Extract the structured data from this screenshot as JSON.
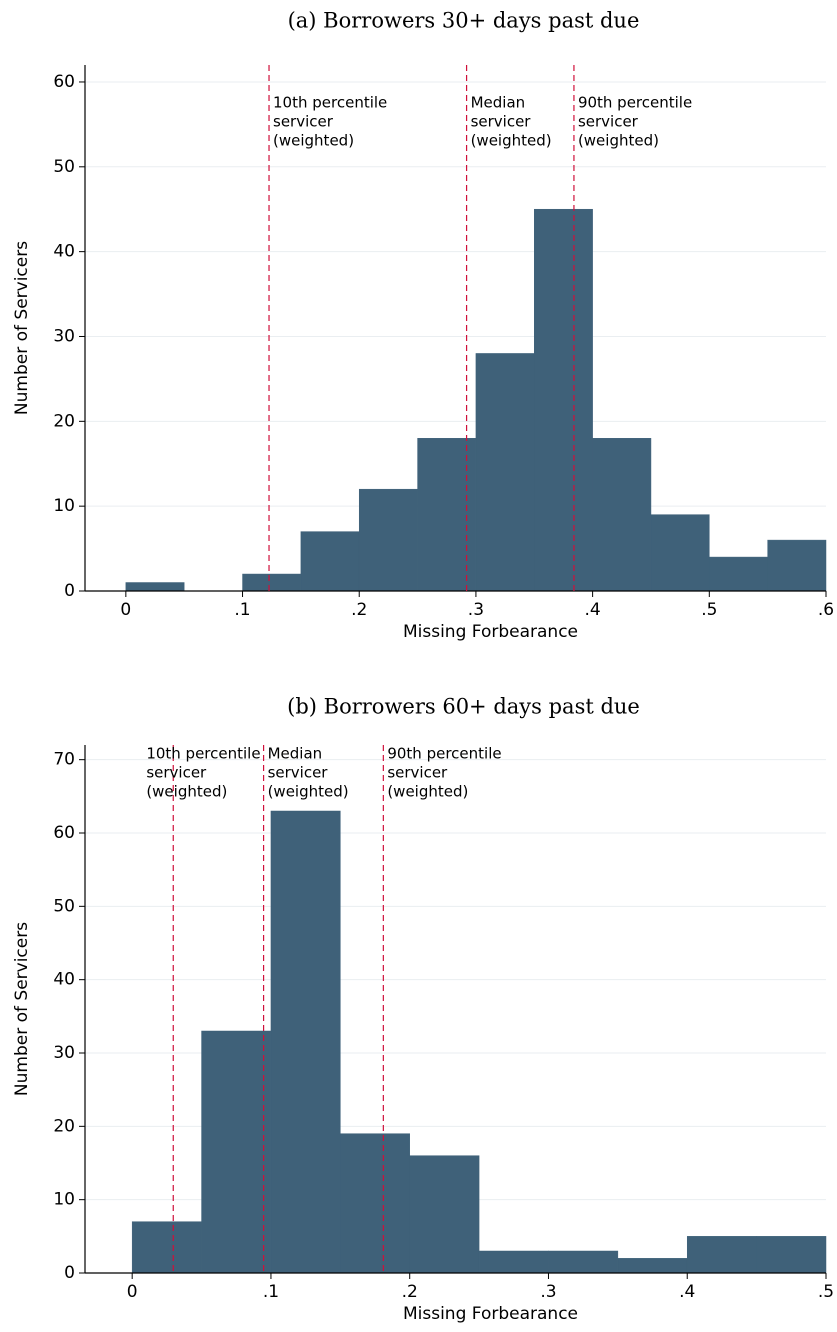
{
  "chart_data": [
    {
      "type": "histogram",
      "title": "(a) Borrowers 30+ days past due",
      "xlabel": "Missing Forbearance",
      "ylabel": "Number of Servicers",
      "bins": [
        0,
        0.05,
        0.1,
        0.15,
        0.2,
        0.25,
        0.3,
        0.35,
        0.4,
        0.45,
        0.5,
        0.55,
        0.6
      ],
      "values": [
        1,
        0,
        2,
        7,
        12,
        18,
        28,
        45,
        18,
        9,
        4,
        6
      ],
      "color": "#3f6179",
      "xlim": [
        -0.035,
        0.6
      ],
      "ylim": [
        0,
        62
      ],
      "xticks": [
        0,
        {
          "value": 0.1,
          "label": ".1"
        },
        {
          "value": 0.2,
          "label": ".2"
        },
        {
          "value": 0.3,
          "label": ".3"
        },
        {
          "value": 0.4,
          "label": ".4"
        },
        {
          "value": 0.5,
          "label": ".5"
        },
        {
          "value": 0.6,
          "label": ".6"
        }
      ],
      "yticks": [
        0,
        10,
        20,
        30,
        40,
        50,
        60
      ],
      "grid": true,
      "vlines": [
        {
          "x": 0.1227,
          "label": [
            "10th percentile",
            "servicer",
            "(weighted)"
          ]
        },
        {
          "x": 0.292,
          "label": [
            "Median",
            "servicer",
            "(weighted)"
          ]
        },
        {
          "x": 0.384,
          "label": [
            "90th percentile",
            "servicer",
            "(weighted)"
          ]
        }
      ],
      "vline_color": "#d0103a"
    },
    {
      "type": "histogram",
      "title": "(b) Borrowers 60+ days past due",
      "xlabel": "Missing Forbearance",
      "ylabel": "Number of Servicers",
      "bins": [
        0,
        0.05,
        0.1,
        0.15,
        0.2,
        0.25,
        0.3,
        0.35,
        0.4,
        0.45,
        0.5
      ],
      "values": [
        7,
        33,
        63,
        19,
        16,
        3,
        3,
        2,
        5,
        5
      ],
      "color": "#3f6179",
      "xlim": [
        -0.034,
        0.5
      ],
      "ylim": [
        0,
        72
      ],
      "xticks": [
        0,
        {
          "value": 0.1,
          "label": ".1"
        },
        {
          "value": 0.2,
          "label": ".2"
        },
        {
          "value": 0.3,
          "label": ".3"
        },
        {
          "value": 0.4,
          "label": ".4"
        },
        {
          "value": 0.5,
          "label": ".5"
        }
      ],
      "yticks": [
        0,
        10,
        20,
        30,
        40,
        50,
        60,
        70
      ],
      "grid": true,
      "vlines": [
        {
          "x": 0.0296,
          "label": [
            "10th percentile",
            "servicer",
            "(weighted)"
          ]
        },
        {
          "x": 0.0947,
          "label": [
            "Median",
            "servicer",
            "(weighted)"
          ]
        },
        {
          "x": 0.181,
          "label": [
            "90th percentile",
            "servicer",
            "(weighted)"
          ]
        }
      ],
      "vline_color": "#d0103a"
    }
  ]
}
